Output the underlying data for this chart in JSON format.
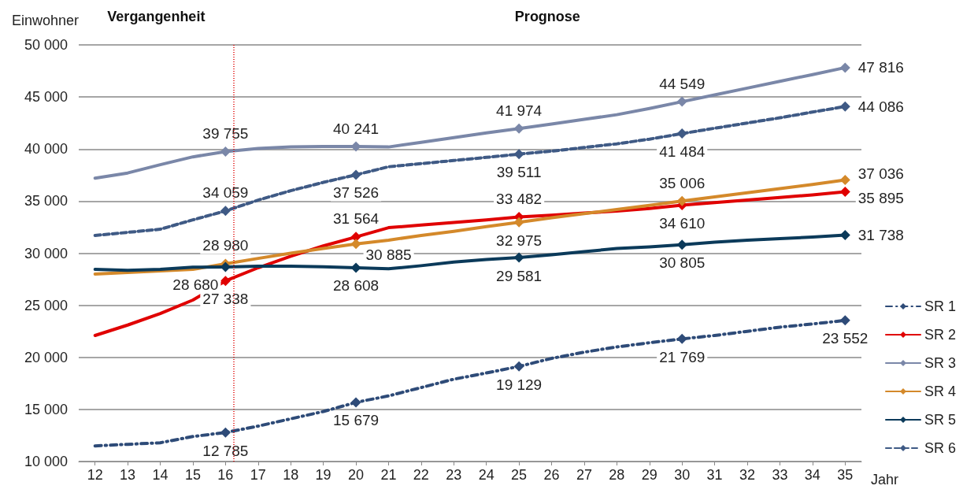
{
  "chart_data": {
    "type": "line",
    "ylabel": "Einwohner",
    "xlabel": "Jahr",
    "annotations": [
      "Vergangenheit",
      "Prognose"
    ],
    "x": [
      12,
      13,
      14,
      15,
      16,
      17,
      18,
      19,
      20,
      21,
      22,
      23,
      24,
      25,
      26,
      27,
      28,
      29,
      30,
      31,
      32,
      33,
      34,
      35
    ],
    "xlim": [
      11.5,
      35.5
    ],
    "xticks": [
      12,
      13,
      14,
      15,
      16,
      17,
      18,
      19,
      20,
      21,
      22,
      23,
      24,
      25,
      26,
      27,
      28,
      29,
      30,
      31,
      32,
      33,
      34,
      35
    ],
    "ylim": [
      10000,
      50000
    ],
    "yticks": [
      {
        "value": 10000,
        "label": "10 000"
      },
      {
        "value": 15000,
        "label": "15 000"
      },
      {
        "value": 20000,
        "label": "20 000"
      },
      {
        "value": 25000,
        "label": "25 000"
      },
      {
        "value": 30000,
        "label": "30 000"
      },
      {
        "value": 35000,
        "label": "35 000"
      },
      {
        "value": 40000,
        "label": "40 000"
      },
      {
        "value": 45000,
        "label": "45 000"
      },
      {
        "value": 50000,
        "label": "50 000"
      }
    ],
    "grid": "y",
    "legend": "right",
    "ref_lines": [
      {
        "axis": "x",
        "value": 16.25,
        "color": "#e00000",
        "line_style": "dotted"
      }
    ],
    "series": [
      {
        "name": "SR 1",
        "color": "#2e4b78",
        "line_style": "dashdot",
        "values": [
          11500,
          11650,
          11800,
          12400,
          12785,
          13400,
          14100,
          14800,
          15679,
          16300,
          17100,
          17900,
          18500,
          19129,
          19900,
          20500,
          21000,
          21400,
          21769,
          22100,
          22500,
          22900,
          23200,
          23552
        ],
        "value_labels": [
          null,
          null,
          null,
          null,
          "12 785",
          null,
          null,
          null,
          "15 679",
          null,
          null,
          null,
          null,
          "19 129",
          null,
          null,
          null,
          null,
          "21 769",
          null,
          null,
          null,
          null,
          "23 552"
        ]
      },
      {
        "name": "SR 2",
        "color": "#e00000",
        "line_style": "solid",
        "values": [
          22100,
          23100,
          24200,
          25500,
          27338,
          28600,
          29700,
          30700,
          31564,
          32450,
          32700,
          32950,
          33200,
          33482,
          33650,
          33850,
          34050,
          34300,
          34610,
          34850,
          35100,
          35350,
          35600,
          35895
        ],
        "value_labels": [
          null,
          null,
          null,
          null,
          "27 338",
          null,
          null,
          null,
          "31 564",
          null,
          null,
          null,
          null,
          "33 482",
          null,
          null,
          null,
          null,
          "34 610",
          null,
          null,
          null,
          null,
          "35 895"
        ]
      },
      {
        "name": "SR 3",
        "color": "#7a87a8",
        "line_style": "solid",
        "values": [
          37200,
          37700,
          38500,
          39250,
          39755,
          40050,
          40200,
          40250,
          40241,
          40200,
          40650,
          41100,
          41550,
          41974,
          42400,
          42850,
          43300,
          43900,
          44549,
          45200,
          45850,
          46500,
          47150,
          47816
        ],
        "value_labels": [
          null,
          null,
          null,
          null,
          "39 755",
          null,
          null,
          null,
          "40 241",
          null,
          null,
          null,
          null,
          "41 974",
          null,
          null,
          null,
          null,
          "44 549",
          null,
          null,
          null,
          null,
          "47 816"
        ]
      },
      {
        "name": "SR 4",
        "color": "#d4892a",
        "line_style": "solid",
        "values": [
          28000,
          28150,
          28300,
          28450,
          28980,
          29500,
          30000,
          30450,
          30885,
          31250,
          31700,
          32100,
          32550,
          32975,
          33400,
          33800,
          34200,
          34600,
          35006,
          35400,
          35800,
          36200,
          36600,
          37036
        ],
        "value_labels": [
          null,
          null,
          null,
          null,
          "28 980",
          null,
          null,
          null,
          "30 885",
          null,
          null,
          null,
          null,
          "32 975",
          null,
          null,
          null,
          null,
          "35 006",
          null,
          null,
          null,
          null,
          "37 036"
        ]
      },
      {
        "name": "SR 5",
        "color": "#0b3a5a",
        "line_style": "solid",
        "values": [
          28450,
          28350,
          28450,
          28650,
          28680,
          28750,
          28750,
          28700,
          28608,
          28500,
          28800,
          29150,
          29400,
          29581,
          29850,
          30150,
          30450,
          30600,
          30805,
          31050,
          31250,
          31400,
          31550,
          31738
        ],
        "value_labels": [
          null,
          null,
          null,
          null,
          "28 680",
          null,
          null,
          null,
          "28 608",
          null,
          null,
          null,
          null,
          "29 581",
          null,
          null,
          null,
          null,
          "30 805",
          null,
          null,
          null,
          null,
          "31 738"
        ]
      },
      {
        "name": "SR 6",
        "color": "#3f5a85",
        "line_style": "dashed",
        "values": [
          31700,
          32000,
          32300,
          33200,
          34059,
          35100,
          36000,
          36800,
          37526,
          38300,
          38600,
          38900,
          39200,
          39511,
          39800,
          40150,
          40500,
          40950,
          41484,
          42000,
          42500,
          43000,
          43550,
          44086
        ],
        "value_labels": [
          null,
          null,
          null,
          null,
          "34 059",
          null,
          null,
          null,
          "37 526",
          null,
          null,
          null,
          null,
          "39 511",
          null,
          null,
          null,
          null,
          "41 484",
          null,
          null,
          null,
          null,
          "44 086"
        ]
      }
    ]
  }
}
